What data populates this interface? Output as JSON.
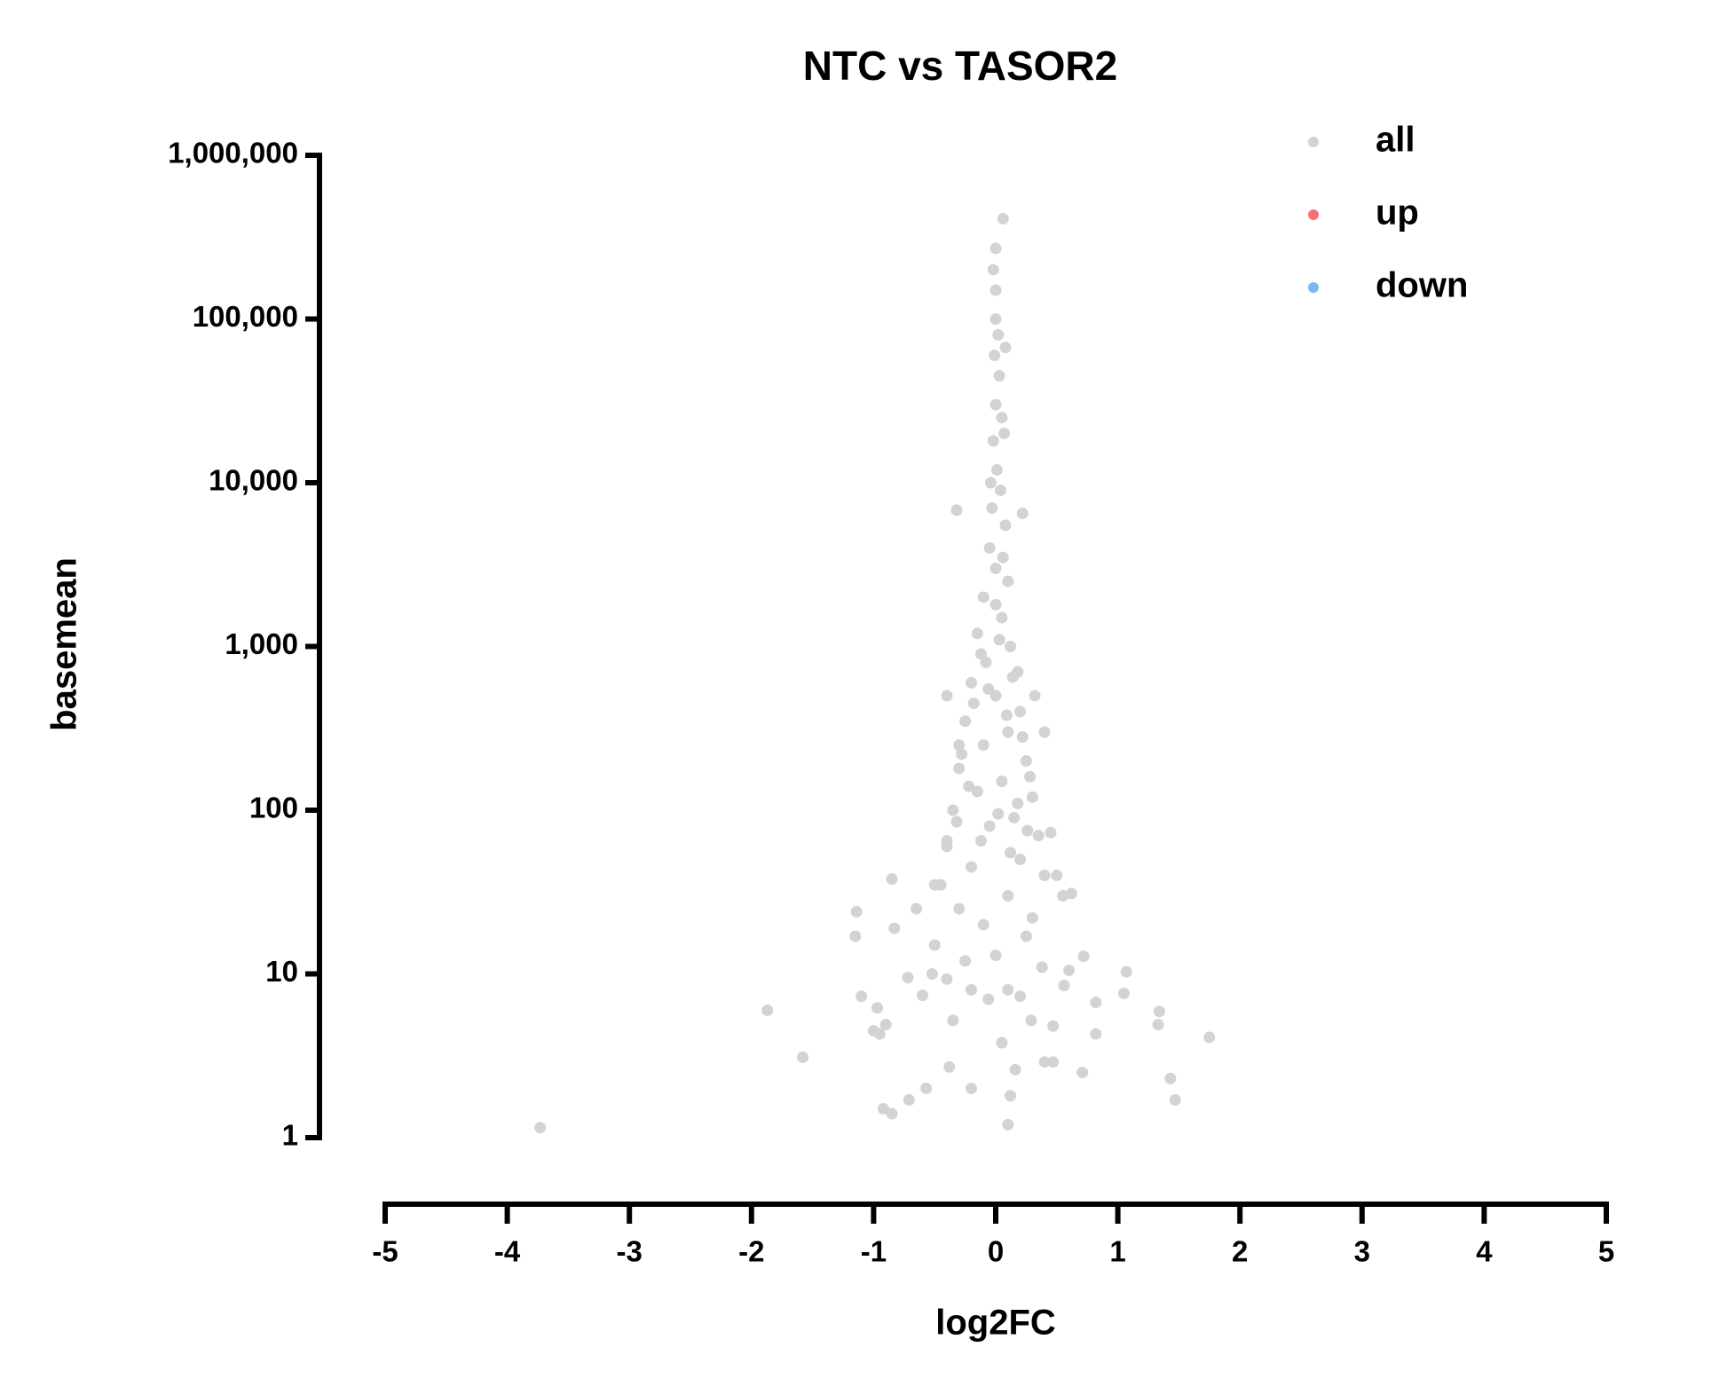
{
  "chart_data": {
    "type": "scatter",
    "title": "NTC vs TASOR2",
    "x_label": "log2FC",
    "y_label": "basemean",
    "xlim": [
      -5,
      5
    ],
    "xticks": [
      -5,
      -4,
      -3,
      -2,
      -1,
      0,
      1,
      2,
      3,
      4,
      5
    ],
    "ylim": [
      1,
      1000000
    ],
    "y_log": true,
    "yticks": [
      1,
      10,
      100,
      {
        "value": 1000,
        "label": "1,000"
      },
      {
        "value": 10000,
        "label": "10,000"
      },
      {
        "value": 100000,
        "label": "100,000"
      },
      {
        "value": 1000000,
        "label": "1,000,000"
      }
    ],
    "legend_position": "top-right",
    "series": [
      {
        "name": "all",
        "color": "#d3d3d3",
        "x": [
          -3.73,
          -1.87,
          -1.58,
          -1.14,
          -1.15,
          -1.1,
          -0.97,
          -1.0,
          -0.95,
          -0.9,
          -0.92,
          -0.85,
          -0.71,
          -0.57,
          -0.38,
          -0.2,
          1.75,
          1.47,
          1.43,
          1.34,
          1.33,
          1.07,
          1.05,
          0.82,
          0.82,
          0.72,
          0.71,
          0.6,
          0.56,
          0.47,
          0.47,
          0.4,
          0.1,
          0.12,
          0.16,
          0.05,
          0.29,
          0.55,
          0.62,
          0.5,
          0.45,
          0.4,
          0.32,
          0.22,
          0.06,
          0.08,
          -0.32,
          0.0,
          -0.02,
          0.0,
          -0.85,
          -0.83,
          -0.72,
          -0.6,
          -0.52,
          -0.4,
          -0.35,
          -0.2,
          -0.06,
          0.1,
          0.2,
          -0.65,
          -0.5,
          -0.4,
          -0.4,
          -0.3,
          0.0,
          0.02,
          -0.01,
          0.03,
          0.0,
          0.05,
          -0.02,
          0.01,
          0.04,
          -0.03,
          0.08,
          -0.05,
          0.0,
          0.1,
          -0.1,
          0.05,
          -0.15,
          0.12,
          -0.08,
          0.18,
          -0.2,
          0.0,
          0.2,
          -0.25,
          0.1,
          -0.1,
          0.25,
          -0.3,
          0.05,
          -0.15,
          0.3,
          -0.35,
          0.15,
          -0.05,
          0.35,
          -0.4,
          0.2,
          -0.2,
          0.4,
          -0.45,
          0.1,
          -0.3,
          0.3,
          -0.1,
          0.25,
          -0.5,
          0.0,
          0.38,
          -0.25,
          0.07,
          -0.04,
          0.06,
          -0.12,
          0.14,
          -0.18,
          0.22,
          -0.28,
          0.28,
          -0.22,
          0.18,
          0.02,
          -0.32,
          0.26,
          -0.12,
          0.12,
          0.0,
          0.03,
          -0.06,
          0.09
        ],
        "y": [
          1.15,
          6,
          3.1,
          24,
          17,
          7.3,
          6.2,
          4.5,
          4.3,
          4.9,
          1.5,
          1.4,
          1.7,
          2.0,
          2.7,
          2.0,
          4.1,
          1.7,
          2.3,
          5.9,
          4.9,
          10.3,
          7.6,
          6.7,
          4.3,
          12.8,
          2.5,
          10.5,
          8.5,
          2.9,
          4.8,
          2.9,
          1.2,
          1.8,
          2.6,
          3.8,
          5.2,
          30,
          31,
          40,
          73,
          300,
          500,
          6500,
          410000,
          67000,
          6800,
          270000,
          200000,
          150000,
          38,
          19,
          9.5,
          7.4,
          10,
          9.3,
          5.2,
          8,
          7,
          8,
          7.3,
          25,
          35,
          65,
          500,
          250,
          100000,
          80000,
          60000,
          45000,
          30000,
          25000,
          18000,
          12000,
          9000,
          7000,
          5500,
          4000,
          3000,
          2500,
          2000,
          1500,
          1200,
          1000,
          800,
          700,
          600,
          500,
          400,
          350,
          300,
          250,
          200,
          180,
          150,
          130,
          120,
          100,
          90,
          80,
          70,
          60,
          50,
          45,
          40,
          35,
          30,
          25,
          22,
          20,
          17,
          15,
          13,
          11,
          12,
          20000,
          10000,
          3500,
          900,
          650,
          450,
          280,
          220,
          160,
          140,
          110,
          95,
          85,
          75,
          65,
          55,
          1800,
          1100,
          550,
          380
        ]
      },
      {
        "name": "up",
        "color": "#f87171",
        "x": [],
        "y": []
      },
      {
        "name": "down",
        "color": "#7bb8f3",
        "x": [],
        "y": []
      }
    ]
  }
}
